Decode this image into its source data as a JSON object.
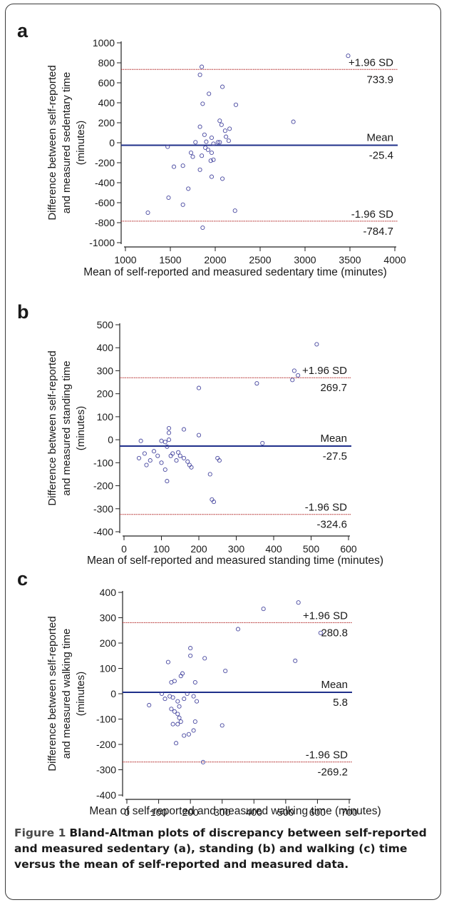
{
  "chart_data": [
    {
      "panel": "a",
      "type": "scatter",
      "ylabel_lines": [
        "Difference between self-reported",
        "and measured sedentary time",
        "(minutes)"
      ],
      "xlabel": "Mean of self-reported and measured sedentary time (minutes)",
      "xlim": [
        1000,
        4000
      ],
      "ylim": [
        -1000,
        1000
      ],
      "xticks": [
        1000,
        1500,
        2000,
        2500,
        3000,
        3500,
        4000
      ],
      "yticks": [
        -1000,
        -800,
        -600,
        -400,
        -200,
        0,
        200,
        400,
        600,
        800,
        1000
      ],
      "mean": -25.4,
      "upper_loa": 733.9,
      "lower_loa": -784.7,
      "labels": {
        "upper": "+1.96 SD",
        "upper_value": "733.9",
        "mean": "Mean",
        "mean_value": "-25.4",
        "lower": "-1.96 SD",
        "lower_value": "-784.7"
      },
      "points": [
        [
          3480,
          870
        ],
        [
          1850,
          760
        ],
        [
          1830,
          680
        ],
        [
          2080,
          560
        ],
        [
          1930,
          490
        ],
        [
          1860,
          390
        ],
        [
          2230,
          380
        ],
        [
          2050,
          220
        ],
        [
          2870,
          210
        ],
        [
          2070,
          180
        ],
        [
          1830,
          160
        ],
        [
          2160,
          140
        ],
        [
          2110,
          120
        ],
        [
          1880,
          80
        ],
        [
          2120,
          60
        ],
        [
          1960,
          50
        ],
        [
          2150,
          20
        ],
        [
          2030,
          5
        ],
        [
          2050,
          5
        ],
        [
          1900,
          10
        ],
        [
          1980,
          -10
        ],
        [
          1780,
          5
        ],
        [
          1470,
          -40
        ],
        [
          1920,
          -70
        ],
        [
          1960,
          -100
        ],
        [
          1890,
          -50
        ],
        [
          1730,
          -100
        ],
        [
          1850,
          -130
        ],
        [
          1980,
          -170
        ],
        [
          1750,
          -140
        ],
        [
          1950,
          -180
        ],
        [
          1540,
          -240
        ],
        [
          1640,
          -230
        ],
        [
          1830,
          -270
        ],
        [
          1960,
          -340
        ],
        [
          2080,
          -360
        ],
        [
          1700,
          -460
        ],
        [
          1480,
          -550
        ],
        [
          1640,
          -620
        ],
        [
          2220,
          -680
        ],
        [
          1250,
          -700
        ],
        [
          1860,
          -850
        ]
      ],
      "point_color": "#4848a0",
      "mean_color": "#1f2f8a",
      "loa_color": "#b02020"
    },
    {
      "panel": "b",
      "type": "scatter",
      "ylabel_lines": [
        "Difference between self-reported",
        "and measured standing time",
        "(minutes)"
      ],
      "xlabel": "Mean of self-reported and measured standing time (minutes)",
      "xlim": [
        0,
        600
      ],
      "ylim": [
        -400,
        500
      ],
      "xticks": [
        0,
        100,
        200,
        300,
        400,
        500,
        600
      ],
      "yticks": [
        -400,
        -300,
        -200,
        -100,
        0,
        100,
        200,
        300,
        400,
        500
      ],
      "mean": -27.5,
      "upper_loa": 269.7,
      "lower_loa": -324.6,
      "labels": {
        "upper": "+1.96 SD",
        "upper_value": "269.7",
        "mean": "Mean",
        "mean_value": "-27.5",
        "lower": "-1.96 SD",
        "lower_value": "-324.6"
      },
      "points": [
        [
          515,
          415
        ],
        [
          455,
          300
        ],
        [
          450,
          260
        ],
        [
          465,
          280
        ],
        [
          355,
          245
        ],
        [
          200,
          225
        ],
        [
          370,
          -15
        ],
        [
          45,
          -5
        ],
        [
          40,
          -80
        ],
        [
          55,
          -60
        ],
        [
          60,
          -110
        ],
        [
          70,
          -90
        ],
        [
          80,
          -50
        ],
        [
          90,
          -70
        ],
        [
          100,
          -100
        ],
        [
          100,
          -5
        ],
        [
          110,
          -10
        ],
        [
          115,
          -30
        ],
        [
          110,
          -130
        ],
        [
          115,
          -180
        ],
        [
          120,
          30
        ],
        [
          120,
          50
        ],
        [
          120,
          0
        ],
        [
          125,
          -70
        ],
        [
          130,
          -60
        ],
        [
          140,
          -90
        ],
        [
          145,
          -55
        ],
        [
          150,
          -70
        ],
        [
          160,
          45
        ],
        [
          160,
          -80
        ],
        [
          170,
          -95
        ],
        [
          175,
          -110
        ],
        [
          180,
          -120
        ],
        [
          200,
          20
        ],
        [
          230,
          -150
        ],
        [
          235,
          -260
        ],
        [
          240,
          -270
        ],
        [
          250,
          -80
        ],
        [
          255,
          -90
        ]
      ],
      "point_color": "#4848a0",
      "mean_color": "#1f2f8a",
      "loa_color": "#b02020"
    },
    {
      "panel": "c",
      "type": "scatter",
      "ylabel_lines": [
        "Difference between self-reported",
        "and measured walking time",
        "(minutes)"
      ],
      "xlabel": "Mean of self-reported and measured walking time (minutes)",
      "xlim": [
        0,
        700
      ],
      "ylim": [
        -400,
        400
      ],
      "xticks": [
        0,
        100,
        200,
        300,
        400,
        500,
        600,
        700
      ],
      "yticks": [
        -400,
        -300,
        -200,
        -100,
        0,
        100,
        200,
        300,
        400
      ],
      "mean": 5.8,
      "upper_loa": 280.8,
      "lower_loa": -269.2,
      "labels": {
        "upper": "+1.96 SD",
        "upper_value": "280.8",
        "mean": "Mean",
        "mean_value": "5.8",
        "lower": "-1.96 SD",
        "lower_value": "-269.2"
      },
      "points": [
        [
          540,
          360
        ],
        [
          430,
          335
        ],
        [
          350,
          255
        ],
        [
          610,
          240
        ],
        [
          530,
          130
        ],
        [
          245,
          140
        ],
        [
          130,
          125
        ],
        [
          200,
          180
        ],
        [
          200,
          150
        ],
        [
          310,
          90
        ],
        [
          175,
          80
        ],
        [
          170,
          70
        ],
        [
          140,
          45
        ],
        [
          215,
          45
        ],
        [
          150,
          50
        ],
        [
          110,
          0
        ],
        [
          120,
          -20
        ],
        [
          135,
          -10
        ],
        [
          145,
          -15
        ],
        [
          160,
          -30
        ],
        [
          165,
          -50
        ],
        [
          180,
          -20
        ],
        [
          190,
          0
        ],
        [
          210,
          -10
        ],
        [
          220,
          -30
        ],
        [
          70,
          -45
        ],
        [
          140,
          -60
        ],
        [
          150,
          -70
        ],
        [
          160,
          -80
        ],
        [
          165,
          -95
        ],
        [
          170,
          -110
        ],
        [
          145,
          -120
        ],
        [
          160,
          -120
        ],
        [
          215,
          -110
        ],
        [
          210,
          -145
        ],
        [
          195,
          -160
        ],
        [
          180,
          -165
        ],
        [
          155,
          -195
        ],
        [
          240,
          -270
        ],
        [
          300,
          -125
        ]
      ],
      "point_color": "#4848a0",
      "mean_color": "#1f2f8a",
      "loa_color": "#b02020"
    }
  ],
  "caption": {
    "figure_label": "Figure 1",
    "text": "Bland-Altman plots of discrepancy between self-reported and measured sedentary (a), standing (b) and walking (c) time versus the mean of self-reported and measured data."
  }
}
